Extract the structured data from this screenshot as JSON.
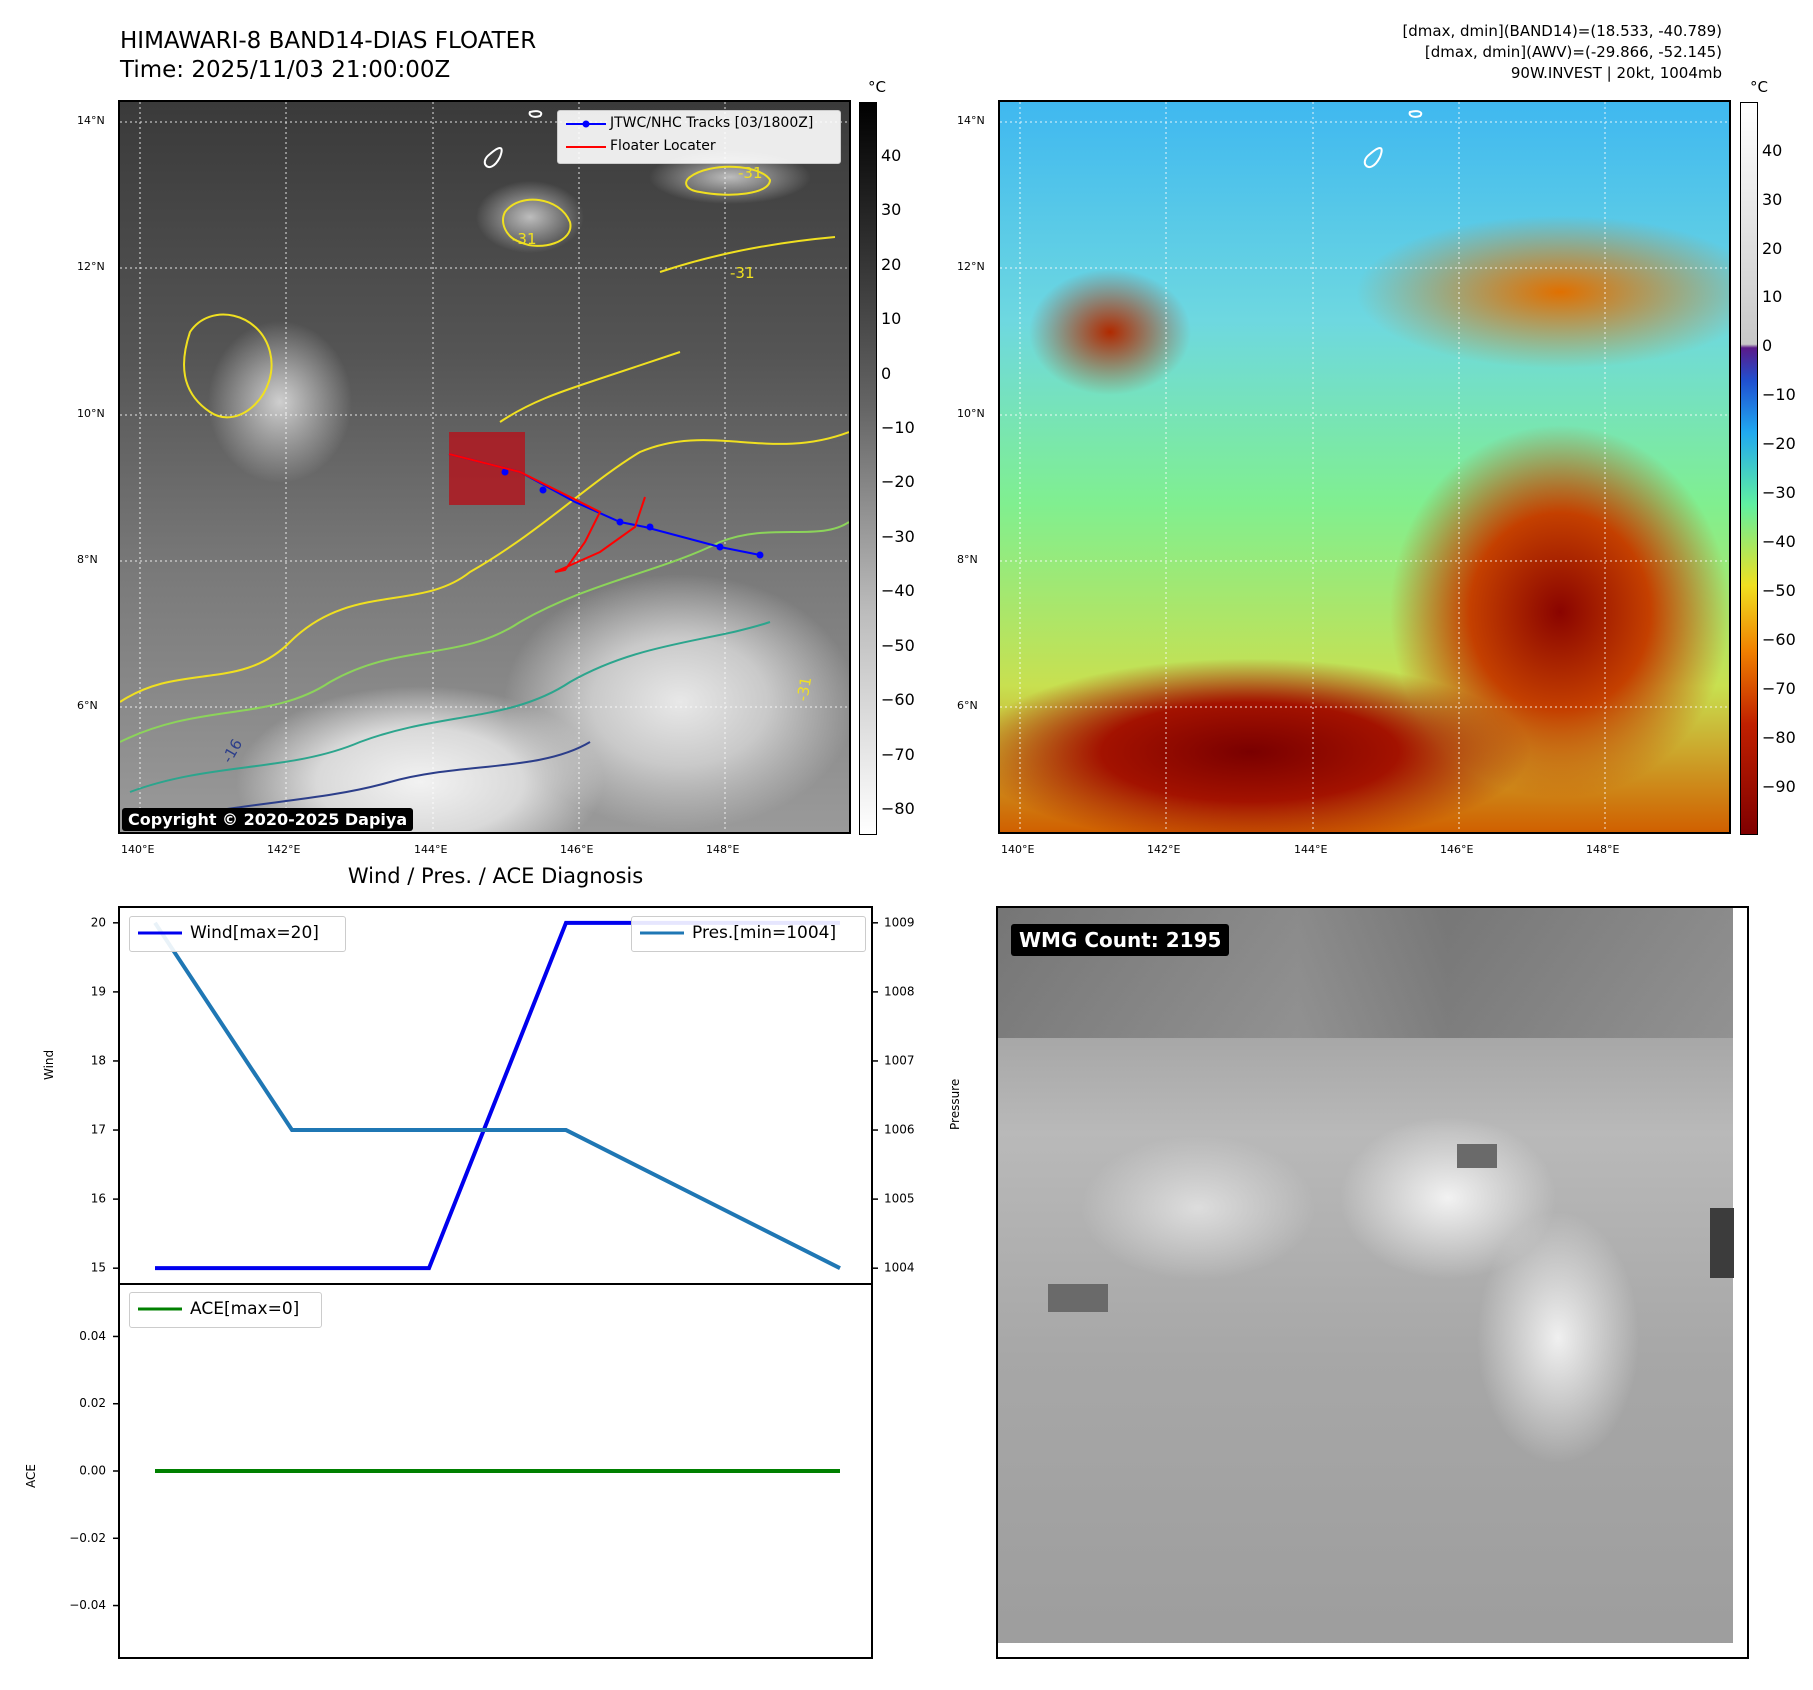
{
  "header": {
    "title_line1": "HIMAWARI-8 BAND14-DIAS FLOATER",
    "title_line2": "Time: 2025/11/03 21:00:00Z",
    "info_line1": "[dmax, dmin](BAND14)=(18.533, -40.789)",
    "info_line2": "[dmax, dmin](AWV)=(-29.866, -52.145)",
    "info_line3": "90W.INVEST | 20kt, 1004mb"
  },
  "maps": {
    "lat_labels": [
      "14°N",
      "12°N",
      "10°N",
      "8°N",
      "6°N"
    ],
    "lon_labels": [
      "140°E",
      "142°E",
      "144°E",
      "146°E",
      "148°E"
    ],
    "colorbar_unit": "°C",
    "left_colorbar_ticks": [
      "40",
      "30",
      "20",
      "10",
      "0",
      "−10",
      "−20",
      "−30",
      "−40",
      "−50",
      "−60",
      "−70",
      "−80"
    ],
    "right_colorbar_ticks": [
      "40",
      "30",
      "20",
      "10",
      "0",
      "−10",
      "−20",
      "−30",
      "−40",
      "−50",
      "−60",
      "−70",
      "−80",
      "−90"
    ],
    "legend_tracks": "JTWC/NHC Tracks [03/1800Z]",
    "legend_floater": "Floater Locater",
    "copyright": "Copyright © 2020-2025 Dapiya",
    "contour_labels": [
      "-31",
      "-31",
      "-31",
      "-31",
      "-16"
    ],
    "colors": {
      "track": "#0000ff",
      "floater": "#ff0000",
      "floater_box": "#b01820"
    }
  },
  "diag": {
    "title": "Wind / Pres. / ACE Diagnosis",
    "wind_axis_label": "Wind",
    "pressure_axis_label": "Pressure",
    "ace_axis_label": "ACE",
    "legend_wind": "Wind[max=20]",
    "legend_pres": "Pres.[min=1004]",
    "legend_ace": "ACE[max=0]",
    "wind_ticks": [
      "20",
      "19",
      "18",
      "17",
      "16",
      "15"
    ],
    "pres_ticks": [
      "1009",
      "1008",
      "1007",
      "1006",
      "1005",
      "1004"
    ],
    "ace_ticks": [
      "0.04",
      "0.02",
      "0.00",
      "−0.02",
      "−0.04"
    ],
    "colors": {
      "wind": "#0000ee",
      "pressure": "#1f77b4",
      "ace": "#008000"
    }
  },
  "wmg": {
    "badge": "WMG Count: 2195"
  },
  "chart_data": [
    {
      "type": "line",
      "title": "Wind / Pres. / ACE Diagnosis",
      "ylabel": "Wind",
      "ylabel_right": "Pressure",
      "x": [
        0,
        1,
        2,
        3,
        4,
        5
      ],
      "ylim": [
        14.8,
        20.2
      ],
      "ylim_right": [
        1003.8,
        1009.2
      ],
      "series": [
        {
          "name": "Wind[max=20]",
          "axis": "left",
          "values": [
            15,
            15,
            15,
            20,
            20,
            20
          ]
        },
        {
          "name": "Pres.[min=1004]",
          "axis": "right",
          "values": [
            1009,
            1006,
            1006,
            1006,
            1005,
            1004
          ]
        }
      ]
    },
    {
      "type": "line",
      "ylabel": "ACE",
      "x": [
        0,
        1,
        2,
        3,
        4,
        5
      ],
      "ylim": [
        -0.055,
        0.055
      ],
      "series": [
        {
          "name": "ACE[max=0]",
          "values": [
            0,
            0,
            0,
            0,
            0,
            0
          ]
        }
      ]
    }
  ]
}
